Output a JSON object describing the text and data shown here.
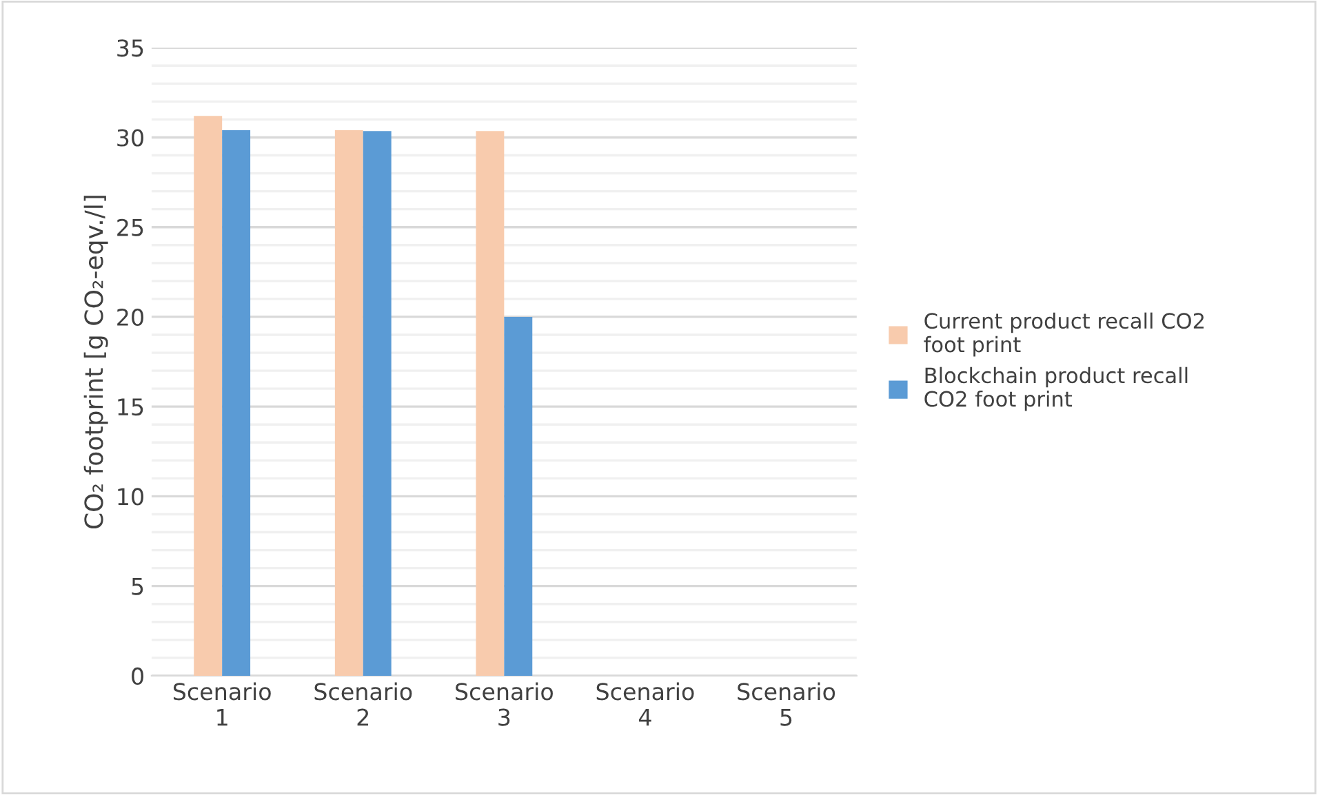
{
  "chart_data": {
    "type": "bar",
    "ylabel": "CO₂ footprint [g CO₂-eqv./l]",
    "categories": [
      "Scenario 1",
      "Scenario 2",
      "Scenario 3",
      "Scenario 4",
      "Scenario 5"
    ],
    "series": [
      {
        "name": "Current product recall CO2 foot print",
        "color": "#f8cbad",
        "values": [
          31.2,
          30.4,
          30.35,
          null,
          null
        ]
      },
      {
        "name": "Blockchain product recall CO2 foot print",
        "color": "#5b9bd5",
        "values": [
          30.4,
          30.35,
          20.0,
          null,
          null
        ]
      }
    ],
    "ylim": [
      0,
      35
    ],
    "yticks": [
      0,
      5,
      10,
      15,
      20,
      25,
      30,
      35
    ],
    "grid": "y",
    "legend": "right"
  }
}
